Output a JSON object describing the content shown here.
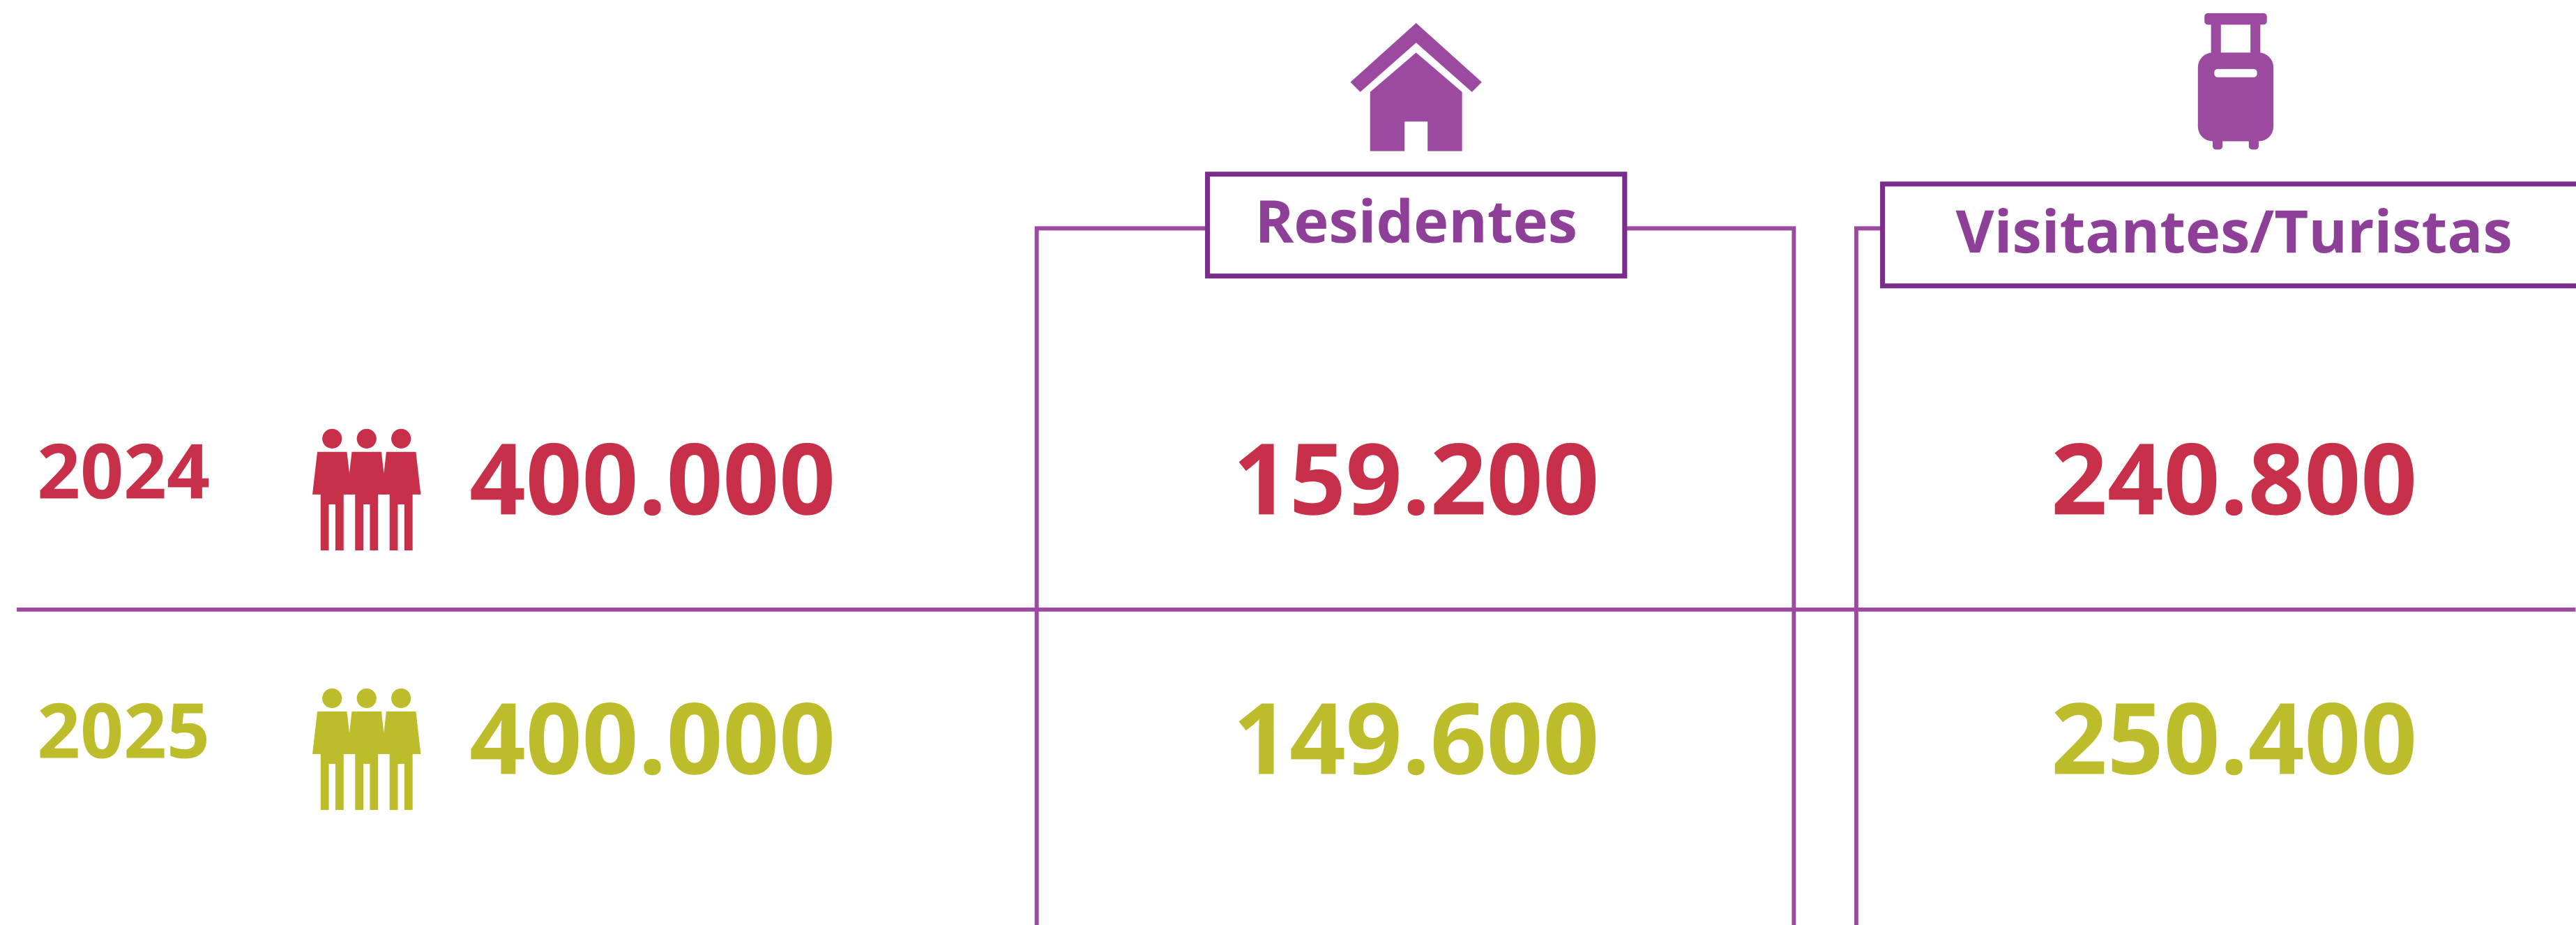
{
  "columns": [
    "Residentes",
    "Visitantes/Turistas"
  ],
  "rows": [
    {
      "year": "2024",
      "total": "400.000",
      "cells": [
        "159.200",
        "240.800"
      ]
    },
    {
      "year": "2025",
      "total": "400.000",
      "cells": [
        "149.600",
        "250.400"
      ]
    }
  ]
}
